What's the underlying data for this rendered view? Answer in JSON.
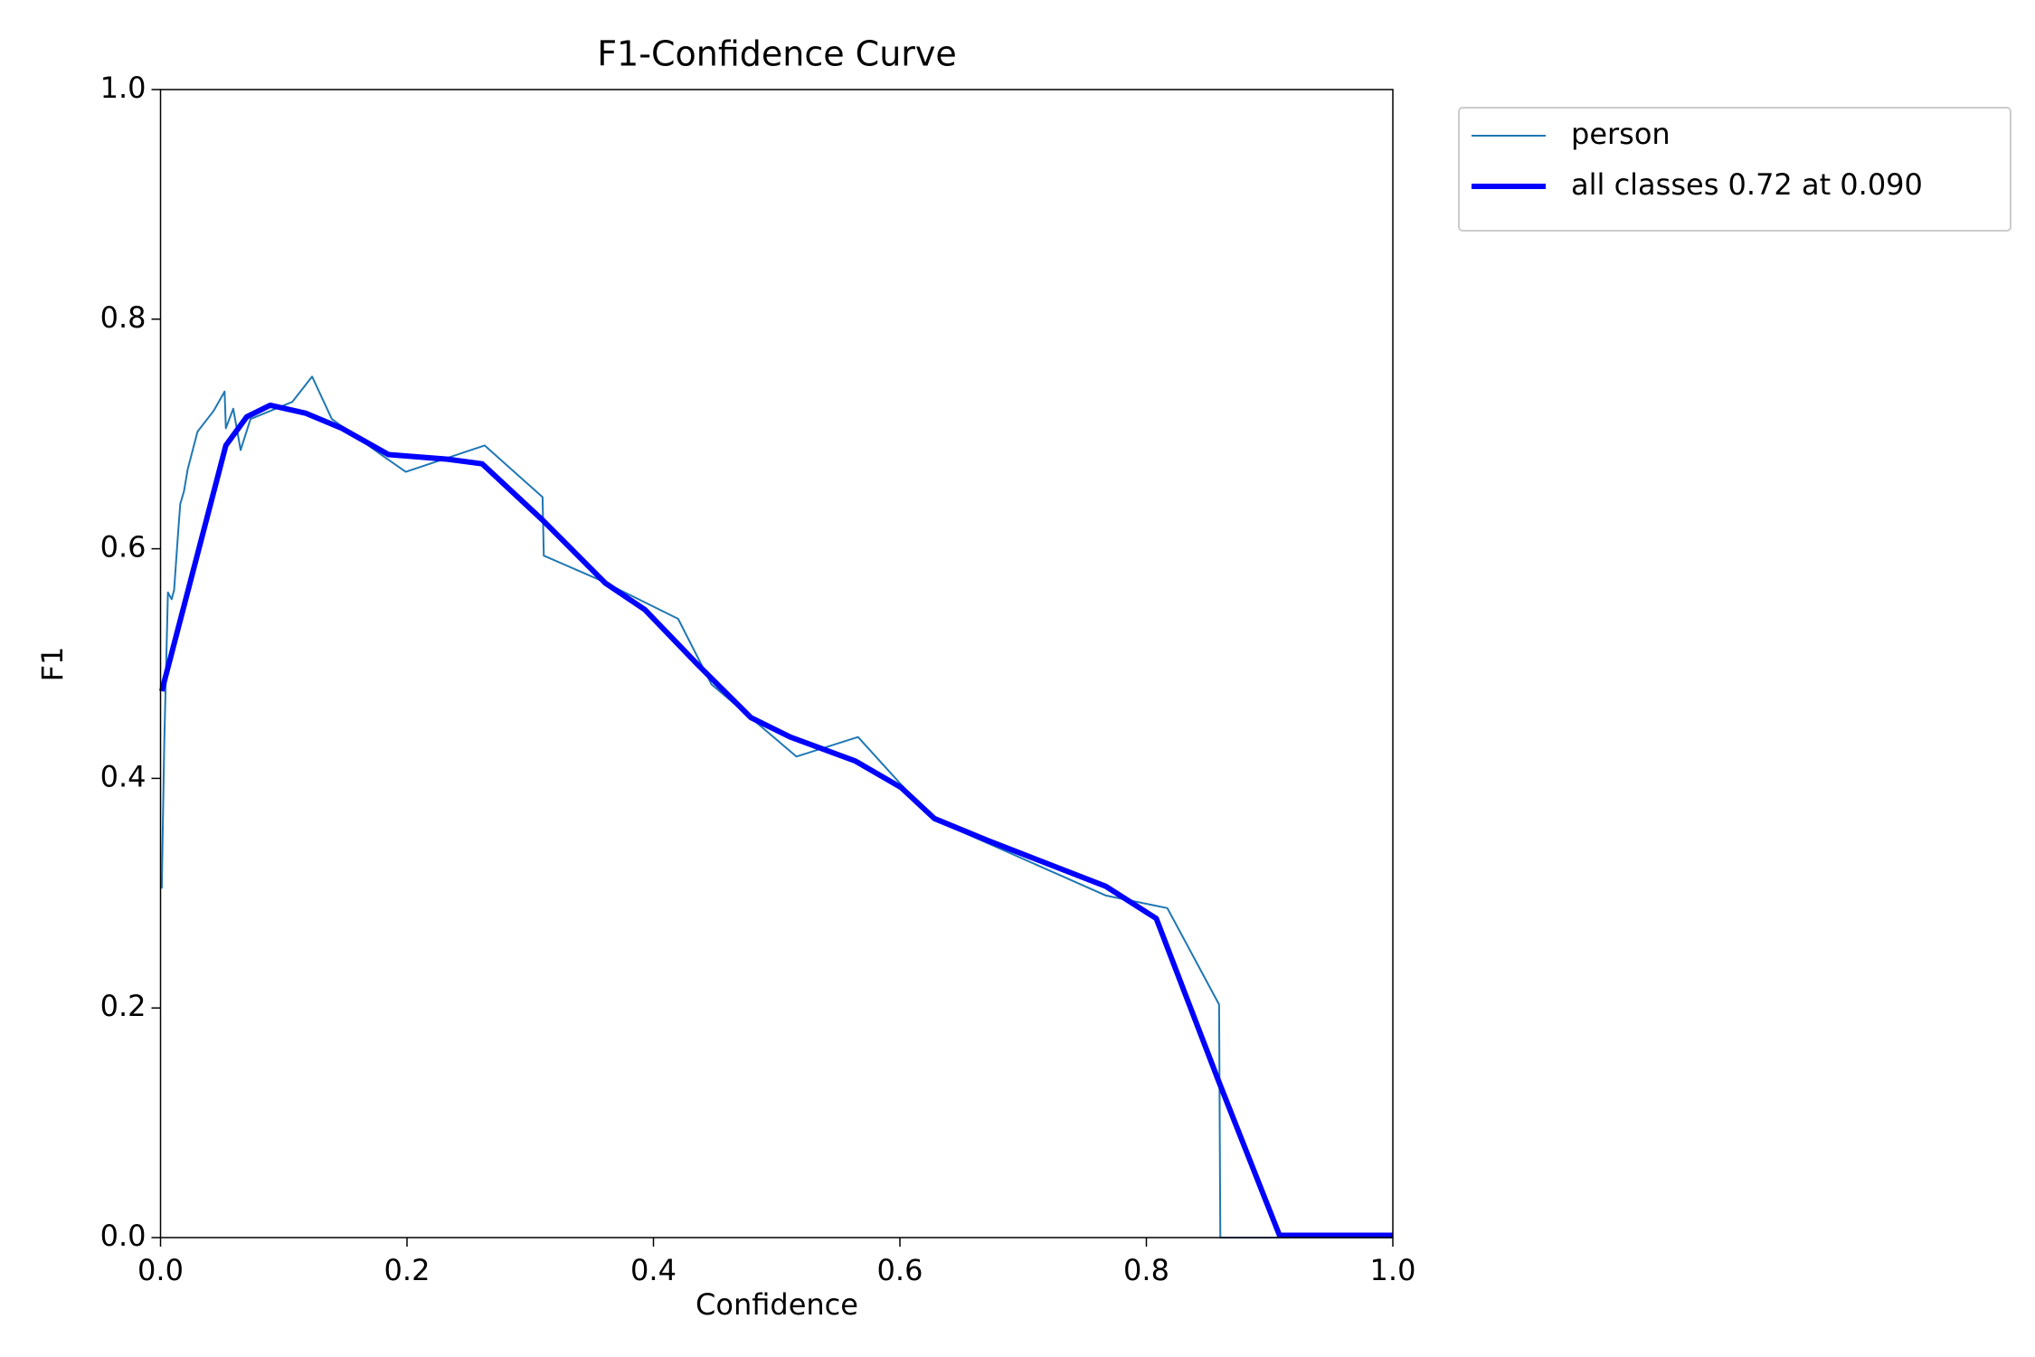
{
  "chart_data": {
    "type": "line",
    "title": "F1-Confidence Curve",
    "xlabel": "Confidence",
    "ylabel": "F1",
    "xlim": [
      0,
      1
    ],
    "ylim": [
      0,
      1
    ],
    "xticks": [
      {
        "value": 0,
        "label": "0.0"
      },
      0.2,
      0.4,
      0.6,
      0.8,
      {
        "value": 1,
        "label": "1.0"
      }
    ],
    "yticks": [
      {
        "value": 0,
        "label": "0.0"
      },
      0.2,
      0.4,
      0.6,
      0.8,
      {
        "value": 1,
        "label": "1.0"
      }
    ],
    "grid": false,
    "legend": "outside-right",
    "series": [
      {
        "name": "person",
        "color": "#1f77b4",
        "width": 2,
        "x": [
          0.001,
          0.003,
          0.006,
          0.009,
          0.011,
          0.014,
          0.016,
          0.019,
          0.022,
          0.03,
          0.043,
          0.052,
          0.053,
          0.059,
          0.065,
          0.073,
          0.107,
          0.123,
          0.139,
          0.179,
          0.199,
          0.263,
          0.31,
          0.311,
          0.356,
          0.42,
          0.447,
          0.516,
          0.566,
          0.626,
          0.767,
          0.817,
          0.859,
          0.86,
          1.0
        ],
        "values": [
          0.304,
          0.43,
          0.562,
          0.556,
          0.564,
          0.61,
          0.639,
          0.65,
          0.669,
          0.702,
          0.72,
          0.737,
          0.705,
          0.722,
          0.686,
          0.713,
          0.728,
          0.75,
          0.713,
          0.682,
          0.667,
          0.69,
          0.645,
          0.594,
          0.573,
          0.539,
          0.482,
          0.419,
          0.436,
          0.365,
          0.298,
          0.287,
          0.203,
          0,
          0
        ]
      },
      {
        "name": "all classes 0.72 at 0.090",
        "color": "#0000ff",
        "width": 6,
        "x": [
          0.001,
          0.053,
          0.07,
          0.089,
          0.118,
          0.147,
          0.185,
          0.233,
          0.261,
          0.31,
          0.361,
          0.393,
          0.436,
          0.479,
          0.511,
          0.564,
          0.601,
          0.628,
          0.671,
          0.767,
          0.808,
          0.858,
          0.908,
          1.0
        ],
        "values": [
          0.476,
          0.69,
          0.715,
          0.725,
          0.718,
          0.705,
          0.682,
          0.678,
          0.674,
          0.625,
          0.57,
          0.547,
          0.499,
          0.453,
          0.436,
          0.415,
          0.392,
          0.365,
          0.346,
          0.306,
          0.278,
          0.138,
          0.002,
          0.002
        ]
      }
    ]
  }
}
